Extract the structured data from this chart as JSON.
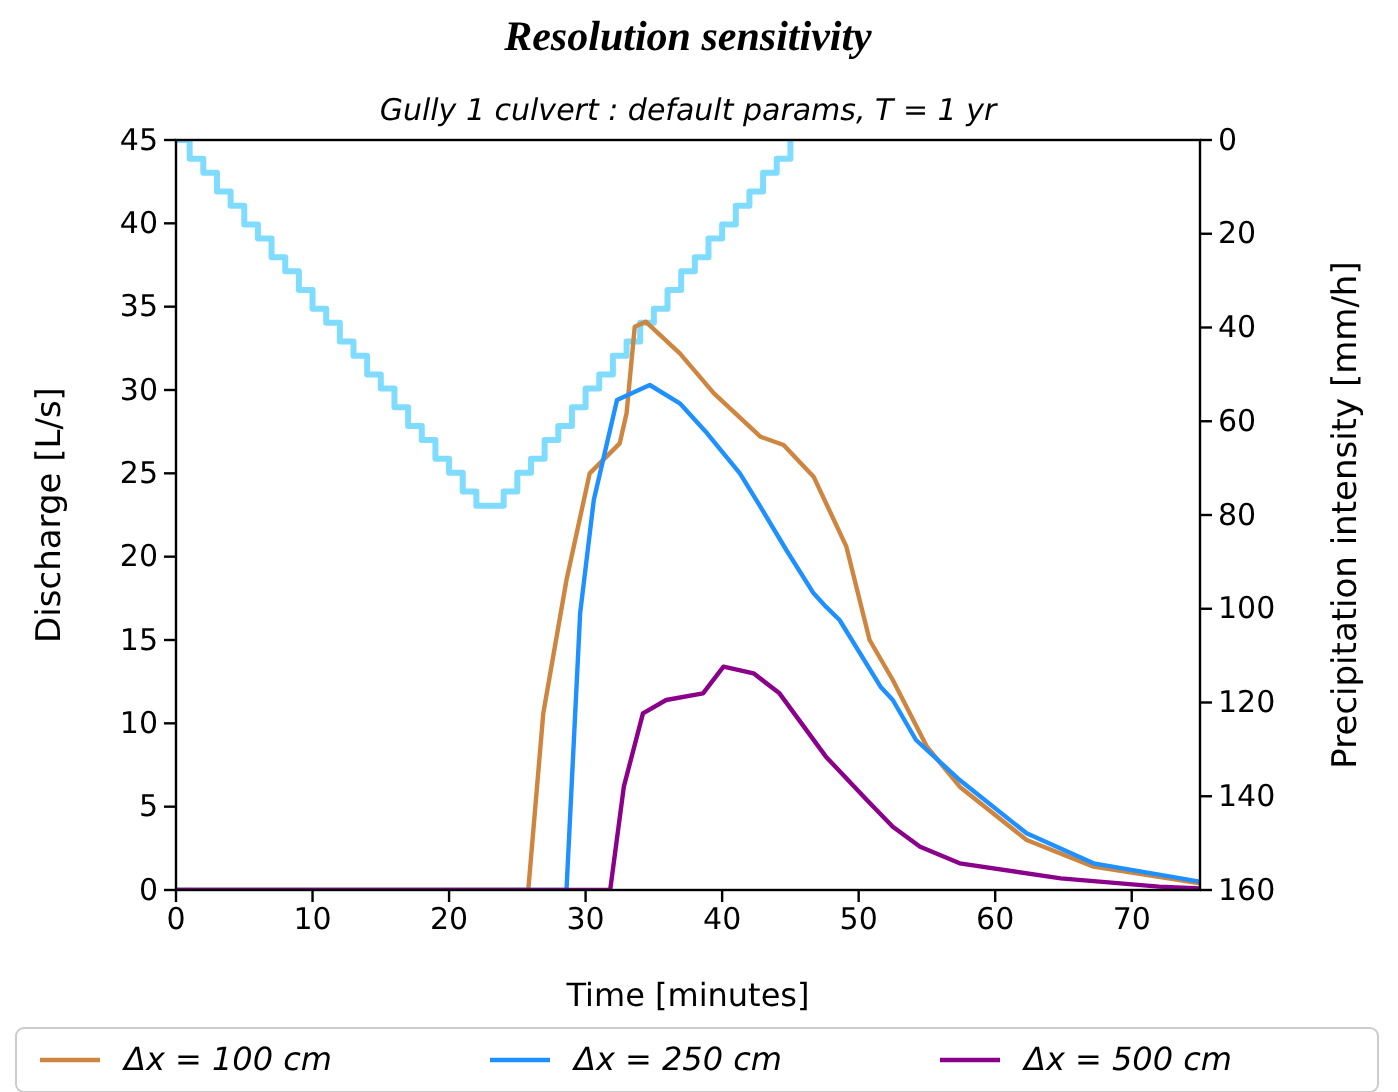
{
  "chart_data": {
    "type": "line",
    "title": "Resolution sensitivity",
    "subtitle": "Gully 1 culvert :  default params, T = 1 yr",
    "xlabel": "Time [minutes]",
    "ylabel": "Discharge [L/s]",
    "y2label": "Precipitation intensity [mm/h]",
    "xlim": [
      0,
      75
    ],
    "xticks": [
      0,
      10,
      20,
      30,
      40,
      50,
      60,
      70
    ],
    "ylim": [
      0,
      45
    ],
    "yticks": [
      0,
      5,
      10,
      15,
      20,
      25,
      30,
      35,
      40,
      45
    ],
    "y2lim": [
      160,
      0
    ],
    "y2ticks": [
      0,
      20,
      40,
      60,
      80,
      100,
      120,
      140,
      160
    ],
    "grid": false,
    "legend": "bottom",
    "marker": "none",
    "line_style": "solid",
    "series": [
      {
        "type": "step",
        "axis": "y2",
        "color": "#7fdcff",
        "x": [
          0,
          1,
          2,
          3,
          4,
          5,
          6,
          7,
          8,
          9,
          10,
          11,
          12,
          13,
          14,
          15,
          16,
          17,
          18,
          19,
          20,
          21,
          22,
          23,
          24,
          25,
          26,
          27,
          28,
          29,
          30,
          31,
          32,
          33,
          34,
          35,
          36,
          37,
          38,
          39,
          40,
          41,
          42,
          43,
          44,
          45
        ],
        "values": [
          0,
          4,
          7,
          11,
          14,
          18,
          21,
          25,
          28,
          32,
          36,
          39,
          43,
          46,
          50,
          53,
          57,
          61,
          64,
          68,
          71,
          75,
          78,
          78,
          75,
          71,
          68,
          64,
          61,
          57,
          53,
          50,
          46,
          43,
          39,
          36,
          32,
          28,
          25,
          21,
          18,
          14,
          11,
          7,
          4,
          0
        ]
      },
      {
        "name": "Δx = 100 cm",
        "color": "#cd853f",
        "x": [
          0,
          25.8,
          26.9,
          28.6,
          30.3,
          32.5,
          33,
          33.6,
          34.4,
          36.9,
          39.4,
          42.8,
          44.5,
          46.7,
          49.1,
          50.8,
          52.5,
          55,
          57.4,
          62.3,
          67.2,
          75
        ],
        "values": [
          0,
          0,
          10.6,
          18.6,
          25,
          26.8,
          28.6,
          33.8,
          34.1,
          32.2,
          29.8,
          27.2,
          26.7,
          24.8,
          20.6,
          15,
          12.6,
          8.6,
          6.2,
          3,
          1.4,
          0.4
        ]
      },
      {
        "name": "Δx = 250 cm",
        "color": "#1e90ff",
        "x": [
          0,
          28.6,
          29.6,
          30.6,
          32.3,
          34.7,
          36.9,
          38.9,
          41.3,
          42.8,
          44.7,
          46.7,
          47.6,
          48.6,
          51.6,
          52.5,
          54.2,
          57.4,
          62.3,
          67.2,
          75
        ],
        "values": [
          0,
          0,
          16.6,
          23.4,
          29.4,
          30.3,
          29.2,
          27.4,
          25,
          23,
          20.4,
          17.8,
          17,
          16.2,
          12.2,
          11.4,
          9,
          6.6,
          3.4,
          1.6,
          0.5
        ]
      },
      {
        "name": "Δx = 500 cm",
        "color": "#8b008b",
        "x": [
          0,
          31.8,
          32.8,
          34.2,
          35.9,
          38.6,
          40.1,
          42.3,
          44.2,
          47.6,
          50.6,
          52.5,
          54.5,
          57.4,
          64.8,
          72,
          75
        ],
        "values": [
          0,
          0,
          6.2,
          10.6,
          11.4,
          11.8,
          13.4,
          13,
          11.8,
          8,
          5.4,
          3.8,
          2.6,
          1.6,
          0.7,
          0.2,
          0.1
        ]
      }
    ]
  }
}
